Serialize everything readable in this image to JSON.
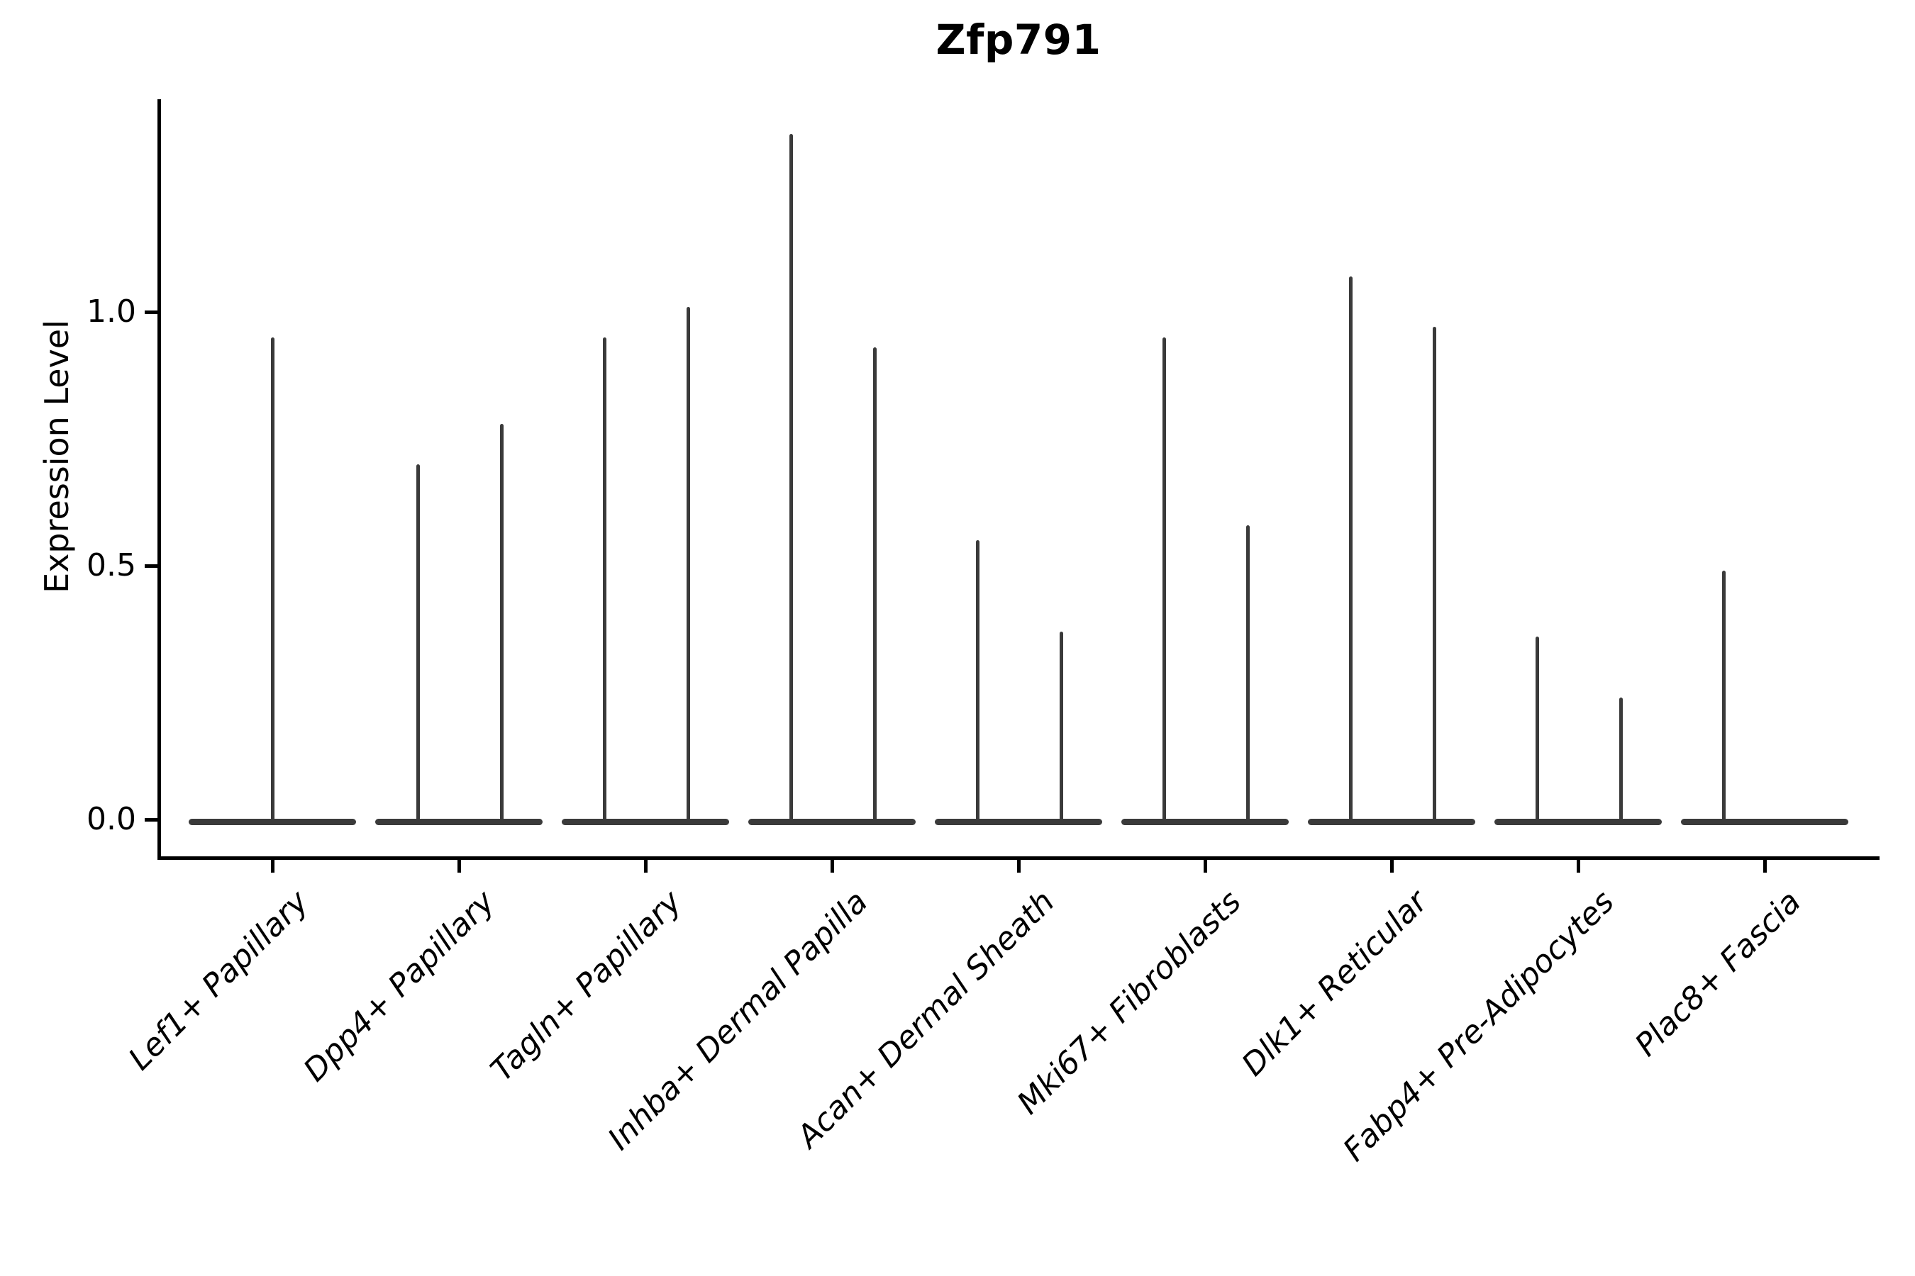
{
  "figure": {
    "title": "Zfp791"
  },
  "chart_data": {
    "type": "violin",
    "title": "Zfp791",
    "xlabel": "",
    "ylabel": "Expression Level",
    "grid": false,
    "legend": null,
    "ytick_labels": [
      "0.0",
      "0.5",
      "1.0"
    ],
    "ytick_values": [
      0.0,
      0.5,
      1.0
    ],
    "ylim": [
      -0.068,
      1.42
    ],
    "violin_width": 0.9,
    "categories": [
      "Lef1+ Papillary",
      "Dpp4+ Papillary",
      "Tagln+ Papillary",
      "Inhba+ Dermal Papilla",
      "Acan+ Dermal Sheath",
      "Mki67+ Fibroblasts",
      "Dlk1+ Reticular",
      "Fabp4+ Pre-Adipocytes",
      "Plac8+ Fascia"
    ],
    "series": [
      {
        "category": "Lef1+ Papillary",
        "violins": [
          {
            "pos": 0.0,
            "peak": 0.95
          }
        ]
      },
      {
        "category": "Dpp4+ Papillary",
        "violins": [
          {
            "pos": -0.22,
            "peak": 0.7
          },
          {
            "pos": 0.23,
            "peak": 0.78
          }
        ]
      },
      {
        "category": "Tagln+ Papillary",
        "violins": [
          {
            "pos": -0.22,
            "peak": 0.95
          },
          {
            "pos": 0.23,
            "peak": 1.01
          }
        ]
      },
      {
        "category": "Inhba+ Dermal Papilla",
        "violins": [
          {
            "pos": -0.22,
            "peak": 1.35
          },
          {
            "pos": 0.23,
            "peak": 0.93
          }
        ]
      },
      {
        "category": "Acan+ Dermal Sheath",
        "violins": [
          {
            "pos": -0.22,
            "peak": 0.55
          },
          {
            "pos": 0.23,
            "peak": 0.37
          }
        ]
      },
      {
        "category": "Mki67+ Fibroblasts",
        "violins": [
          {
            "pos": -0.22,
            "peak": 0.95
          },
          {
            "pos": 0.23,
            "peak": 0.58
          }
        ]
      },
      {
        "category": "Dlk1+ Reticular",
        "violins": [
          {
            "pos": -0.22,
            "peak": 1.07
          },
          {
            "pos": 0.23,
            "peak": 0.97
          }
        ]
      },
      {
        "category": "Fabp4+ Pre-Adipocytes",
        "violins": [
          {
            "pos": -0.22,
            "peak": 0.36
          },
          {
            "pos": 0.23,
            "peak": 0.24
          }
        ]
      },
      {
        "category": "Plac8+ Fascia",
        "violins": [
          {
            "pos": -0.22,
            "peak": 0.49
          }
        ]
      }
    ],
    "colors": {
      "violin": "#3a3a3a",
      "axis": "#000000",
      "text": "#000000"
    }
  }
}
